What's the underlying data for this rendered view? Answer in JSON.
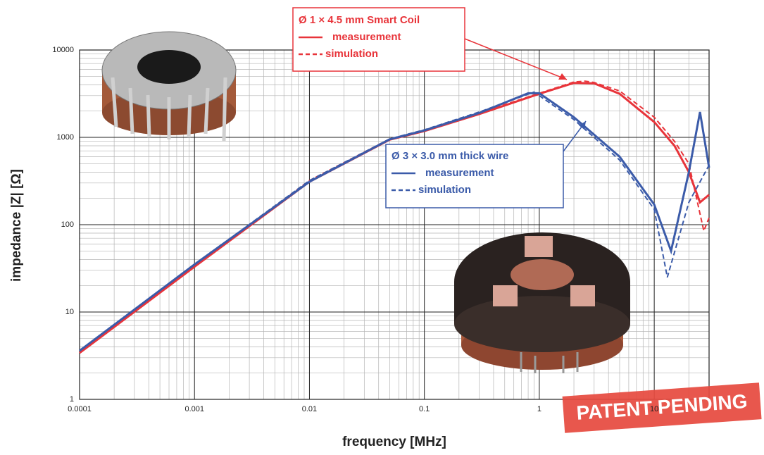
{
  "chart_data": {
    "type": "line",
    "log_x": true,
    "log_y": true,
    "grid": true,
    "minor_grid": true,
    "x_label": "frequency [MHz]",
    "y_label": "impedance  |Z| [Ω]",
    "xlim": [
      0.0001,
      30
    ],
    "ylim": [
      1,
      10000
    ],
    "xticks": [
      0.0001,
      0.001,
      0.01,
      0.1,
      1,
      10
    ],
    "yticks": [
      1,
      10,
      100,
      1000,
      10000
    ],
    "legend_titles": [
      "Ø 1 × 4.5 mm Smart Coil",
      "Ø 3 × 3.0 mm thick wire"
    ],
    "series": [
      {
        "name": "measurement",
        "color": "#e8343a",
        "dash": false,
        "x": [
          0.0001,
          0.001,
          0.01,
          0.05,
          0.1,
          0.3,
          1,
          2,
          3,
          5,
          10,
          15,
          20,
          25,
          30
        ],
        "values": [
          3.4,
          33,
          310,
          940,
          1180,
          1850,
          3150,
          4200,
          4150,
          3150,
          1500,
          800,
          400,
          180,
          220
        ]
      },
      {
        "name": "simulation",
        "color": "#e8343a",
        "dash": true,
        "x": [
          0.0001,
          0.001,
          0.01,
          0.05,
          0.1,
          0.3,
          1,
          2,
          2.5,
          3,
          5,
          10,
          15,
          20,
          27,
          30
        ],
        "values": [
          3.4,
          34,
          320,
          960,
          1200,
          1900,
          3200,
          4300,
          4400,
          4250,
          3400,
          1700,
          900,
          500,
          85,
          120
        ]
      },
      {
        "name": "measurement",
        "color": "#3b5ba9",
        "dash": false,
        "x": [
          0.0001,
          0.001,
          0.01,
          0.05,
          0.1,
          0.3,
          0.8,
          1,
          2,
          5,
          10,
          14,
          20,
          25,
          30
        ],
        "values": [
          3.6,
          35,
          310,
          950,
          1200,
          1900,
          3200,
          3200,
          1700,
          600,
          170,
          50,
          400,
          1950,
          450
        ]
      },
      {
        "name": "simulation",
        "color": "#3b5ba9",
        "dash": true,
        "x": [
          0.0001,
          0.001,
          0.01,
          0.05,
          0.1,
          0.3,
          0.9,
          2,
          5,
          10,
          13,
          20,
          30
        ],
        "values": [
          3.6,
          35,
          320,
          960,
          1220,
          1950,
          3300,
          1600,
          550,
          150,
          25,
          180,
          480
        ]
      }
    ],
    "stamp": "PATENT PENDING"
  }
}
